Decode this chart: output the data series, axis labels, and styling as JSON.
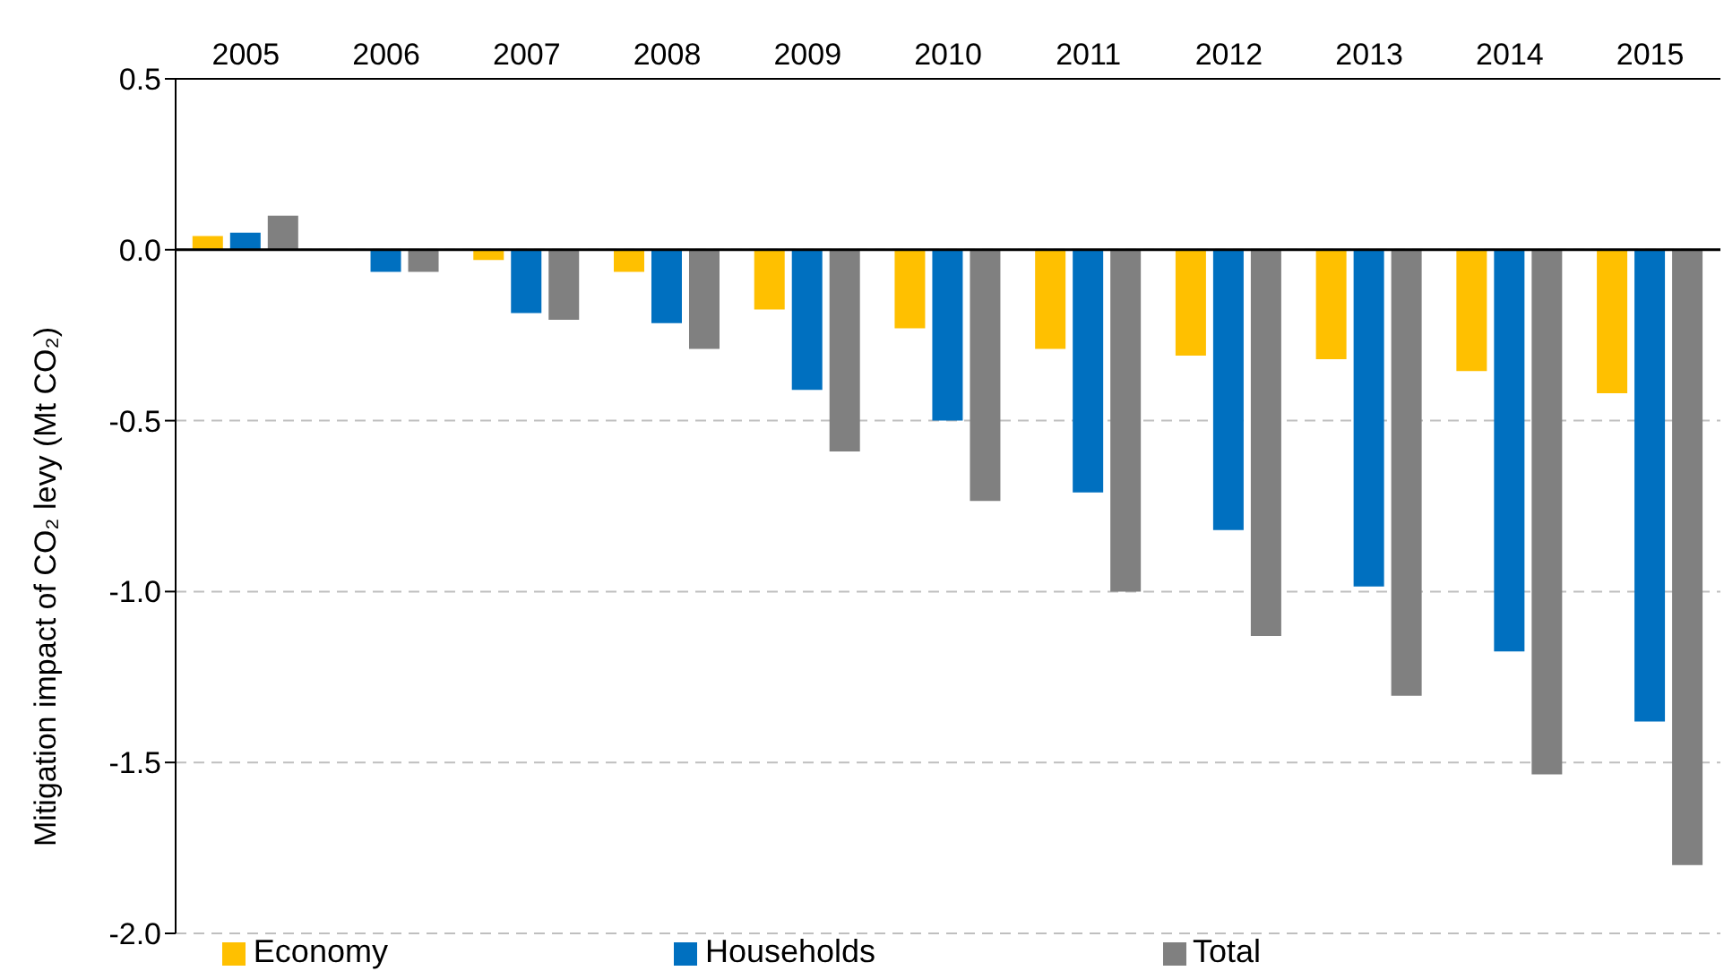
{
  "chart_data": {
    "type": "bar",
    "ylabel": "Mitigation  impact  of CO₂ levy (Mt CO₂)",
    "categories": [
      "2005",
      "2006",
      "2007",
      "2008",
      "2009",
      "2010",
      "2011",
      "2012",
      "2013",
      "2014",
      "2015"
    ],
    "series": [
      {
        "name": "Economy",
        "color": "#ffc000",
        "values": [
          0.04,
          0,
          -0.03,
          -0.065,
          -0.175,
          -0.23,
          -0.29,
          -0.31,
          -0.32,
          -0.355,
          -0.42
        ]
      },
      {
        "name": "Households",
        "color": "#0070c0",
        "values": [
          0.05,
          -0.065,
          -0.185,
          -0.215,
          -0.41,
          -0.5,
          -0.71,
          -0.82,
          -0.985,
          -1.175,
          -1.38
        ]
      },
      {
        "name": "Total",
        "color": "#808080",
        "values": [
          0.1,
          -0.065,
          -0.205,
          -0.29,
          -0.59,
          -0.735,
          -1.0,
          -1.13,
          -1.305,
          -1.535,
          -1.8
        ]
      }
    ],
    "ylim": [
      -2,
      0.5
    ],
    "yticks": [
      {
        "value": 0.5,
        "label": "0.5"
      },
      {
        "value": 0,
        "label": "0.0"
      },
      {
        "value": -0.5,
        "label": "-0.5"
      },
      {
        "value": -1,
        "label": "-1.0"
      },
      {
        "value": -1.5,
        "label": "-1.5"
      },
      {
        "value": -2,
        "label": "-2.0"
      }
    ],
    "ref_lines": [
      {
        "axis": "y",
        "value": 0,
        "color": "#000000"
      }
    ],
    "grid": "y",
    "legend": "bottom"
  }
}
